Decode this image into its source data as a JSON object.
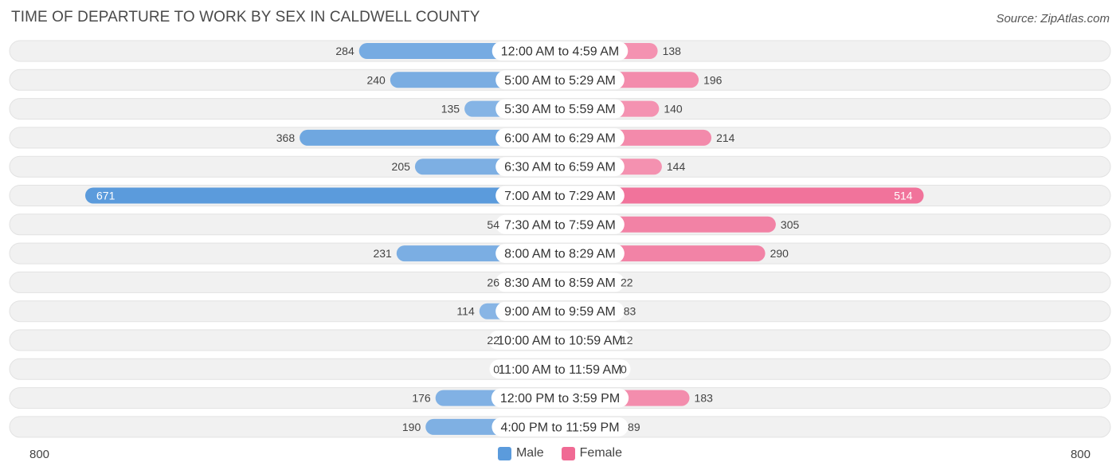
{
  "header": {
    "title": "TIME OF DEPARTURE TO WORK BY SEX IN CALDWELL COUNTY",
    "source": "Source: ZipAtlas.com"
  },
  "colors": {
    "male": "#5b9bdc",
    "male_light": "#a8c8ec",
    "female": "#f06a94",
    "female_light": "#f7b3c9",
    "row_background": "#efefef"
  },
  "chart_data": {
    "type": "bar",
    "orientation": "horizontal-diverging",
    "title": "TIME OF DEPARTURE TO WORK BY SEX IN CALDWELL COUNTY",
    "categories": [
      "12:00 AM to 4:59 AM",
      "5:00 AM to 5:29 AM",
      "5:30 AM to 5:59 AM",
      "6:00 AM to 6:29 AM",
      "6:30 AM to 6:59 AM",
      "7:00 AM to 7:29 AM",
      "7:30 AM to 7:59 AM",
      "8:00 AM to 8:29 AM",
      "8:30 AM to 8:59 AM",
      "9:00 AM to 9:59 AM",
      "10:00 AM to 10:59 AM",
      "11:00 AM to 11:59 AM",
      "12:00 PM to 3:59 PM",
      "4:00 PM to 11:59 PM"
    ],
    "series": [
      {
        "name": "Male",
        "values": [
          284,
          240,
          135,
          368,
          205,
          671,
          54,
          231,
          26,
          114,
          22,
          0,
          176,
          190
        ]
      },
      {
        "name": "Female",
        "values": [
          138,
          196,
          140,
          214,
          144,
          514,
          305,
          290,
          22,
          83,
          12,
          0,
          183,
          89
        ]
      }
    ],
    "xlim": [
      -800,
      800
    ],
    "axis_labels": {
      "left": "800",
      "right": "800"
    },
    "legend_position": "bottom-center",
    "grid": false
  },
  "legend": {
    "male_label": "Male",
    "female_label": "Female"
  }
}
